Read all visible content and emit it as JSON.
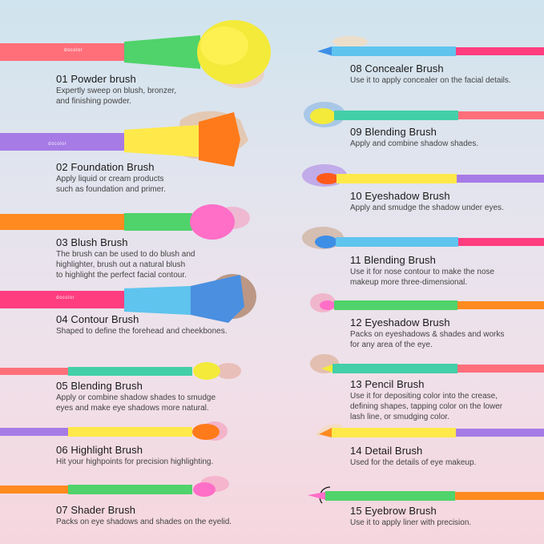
{
  "brand": "docolor",
  "left": [
    {
      "title": "01 Powder brush",
      "desc": "Expertly sweep on blush, bronzer,\nand finishing powder."
    },
    {
      "title": "02 Foundation Brush",
      "desc": "Apply liquid or cream products\nsuch as foundation and primer."
    },
    {
      "title": "03 Blush Brush",
      "desc": "The brush can be used to do blush and\nhighlighter, brush out a natural blush\nto highlight the perfect facial contour."
    },
    {
      "title": "04 Contour Brush",
      "desc": "Shaped to define the forehead and cheekbones."
    },
    {
      "title": "05 Blending Brush",
      "desc": "Apply or combine shadow shades to smudge\neyes and make eye shadows more natural."
    },
    {
      "title": "06 Highlight Brush",
      "desc": "Hit your highpoints for precision highlighting."
    },
    {
      "title": "07 Shader Brush",
      "desc": "Packs on eye shadows and shades on the eyelid."
    }
  ],
  "right": [
    {
      "title": "08 Concealer Brush",
      "desc": "Use it to apply concealer on the facial details."
    },
    {
      "title": "09 Blending Brush",
      "desc": "Apply and combine shadow shades."
    },
    {
      "title": "10 Eyeshadow Brush",
      "desc": "Apply and smudge the shadow under eyes."
    },
    {
      "title": "11 Blending Brush",
      "desc": "Use it for nose contour to make the nose\nmakeup more three-dimensional."
    },
    {
      "title": "12 Eyeshadow Brush",
      "desc": "Packs on eyeshadows & shades and works\nfor any area of the eye."
    },
    {
      "title": "13 Pencil Brush",
      "desc": "Use it for depositing color into the crease,\ndefining shapes, tapping color on the lower\nlash line, or smudging color."
    },
    {
      "title": "14 Detail Brush",
      "desc": "Used for the details of eye makeup."
    },
    {
      "title": "15 Eyebrow Brush",
      "desc": "Use it to apply liner with precision."
    }
  ],
  "colors": {
    "coral": "#ff6f7a",
    "green": "#4fd36a",
    "yellow": "#ffe94a",
    "purple": "#a77be6",
    "orange": "#ff8a1f",
    "magenta": "#ff3d7f",
    "blue": "#5fc4ee",
    "teal": "#43cfa8",
    "pink": "#ff6ec7"
  }
}
